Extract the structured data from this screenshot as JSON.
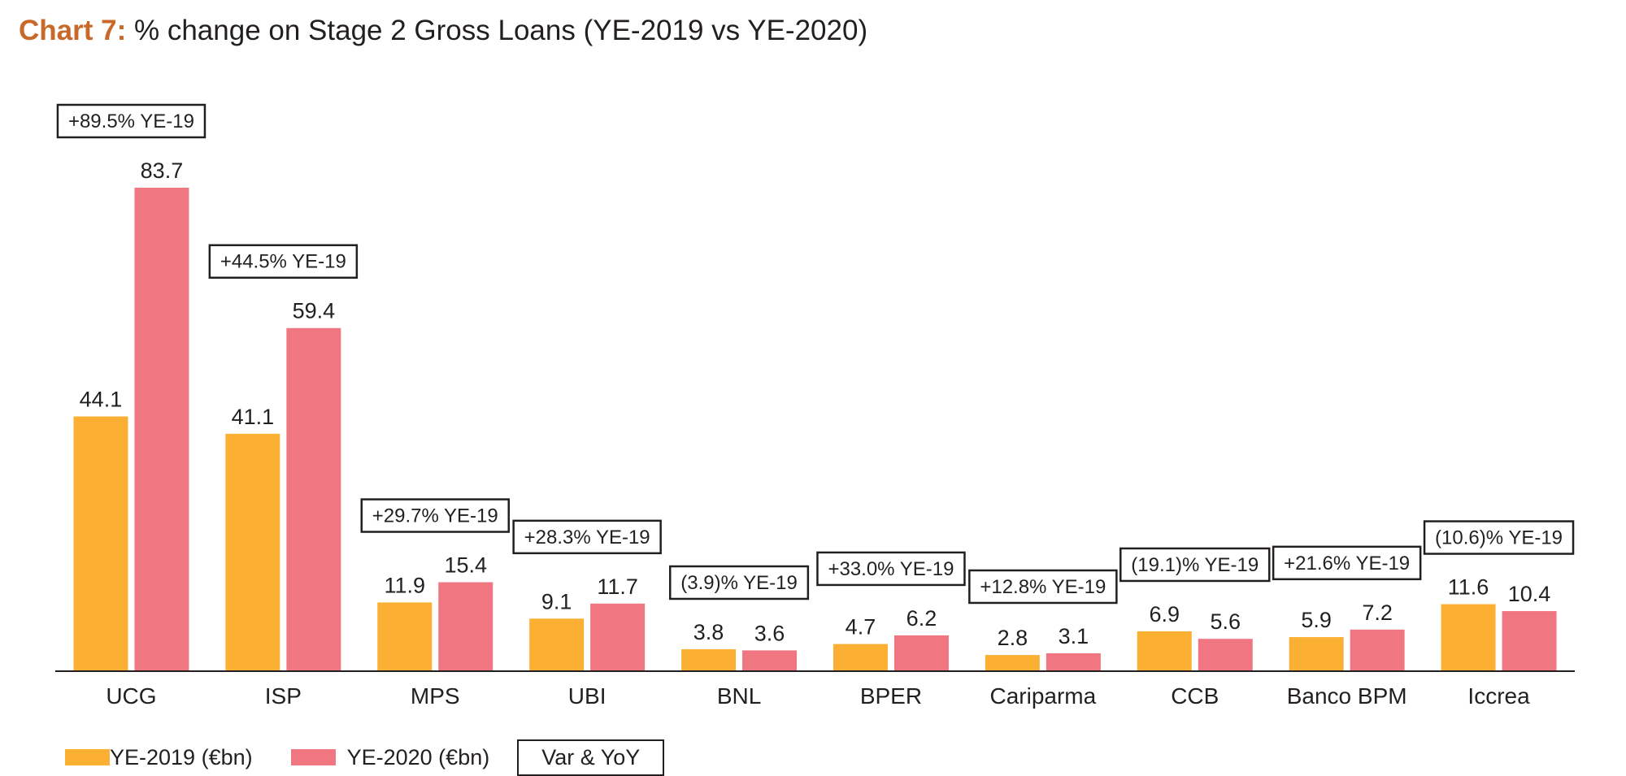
{
  "title": {
    "prefix": "Chart 7:",
    "text": "% change on Stage 2 Gross Loans (YE-2019 vs YE-2020)"
  },
  "colors": {
    "ye2019": "#fbb034",
    "ye2020": "#f07682",
    "title_accent": "#c8692a",
    "text": "#231f20"
  },
  "legend": {
    "items": [
      {
        "label": "YE-2019 (€bn)",
        "color": "#fbb034"
      },
      {
        "label": "YE-2020 (€bn)",
        "color": "#f07682"
      }
    ],
    "box_label": "Var & YoY"
  },
  "chart_data": {
    "type": "bar",
    "title": "Chart 7: % change on Stage 2 Gross Loans (YE-2019 vs YE-2020)",
    "xlabel": "",
    "ylabel": "",
    "ylim": [
      0,
      83.7
    ],
    "grid": false,
    "legend_position": "bottom-left",
    "categories": [
      "UCG",
      "ISP",
      "MPS",
      "UBI",
      "BNL",
      "BPER",
      "Cariparma",
      "CCB",
      "Banco BPM",
      "Iccrea"
    ],
    "series": [
      {
        "name": "YE-2019 (€bn)",
        "values": [
          44.1,
          41.1,
          11.9,
          9.1,
          3.8,
          4.7,
          2.8,
          6.9,
          5.9,
          11.6
        ]
      },
      {
        "name": "YE-2020 (€bn)",
        "values": [
          83.7,
          59.4,
          15.4,
          11.7,
          3.6,
          6.2,
          3.1,
          5.6,
          7.2,
          10.4
        ]
      }
    ],
    "value_labels": [
      [
        "44.1",
        "41.1",
        "11.9",
        "9.1",
        "3.8",
        "4.7",
        "2.8",
        "6.9",
        "5.9",
        "11.6"
      ],
      [
        "83.7",
        "59.4",
        "15.4",
        "11.7",
        "3.6",
        "6.2",
        "3.1",
        "5.6",
        "7.2",
        "10.4"
      ]
    ],
    "annotations": [
      "+89.5% YE-19",
      "+44.5% YE-19",
      "+29.7% YE-19",
      "+28.3% YE-19",
      "(3.9)% YE-19",
      "+33.0% YE-19",
      "+12.8% YE-19",
      "(19.1)% YE-19",
      "+21.6% YE-19",
      "(10.6)% YE-19"
    ]
  }
}
